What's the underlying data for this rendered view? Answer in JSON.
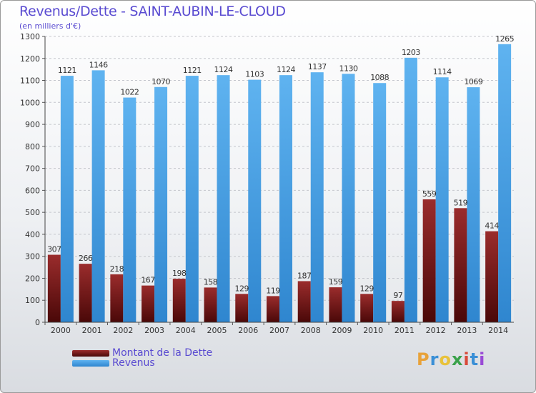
{
  "chart_data": {
    "type": "bar",
    "title": "Revenus/Dette - SAINT-AUBIN-LE-CLOUD",
    "subtitle": "(en milliers d'€)",
    "categories": [
      "2000",
      "2001",
      "2002",
      "2003",
      "2004",
      "2005",
      "2006",
      "2007",
      "2008",
      "2009",
      "2010",
      "2011",
      "2012",
      "2013",
      "2014"
    ],
    "series": [
      {
        "name": "Montant de la Dette",
        "color": "#7b1a1a",
        "values": [
          307,
          266,
          218,
          167,
          198,
          158,
          129,
          119,
          187,
          159,
          129,
          97,
          559,
          519,
          414
        ]
      },
      {
        "name": "Revenus",
        "color": "#4aa3e6",
        "values": [
          1121,
          1146,
          1022,
          1070,
          1121,
          1124,
          1103,
          1124,
          1137,
          1130,
          1088,
          1203,
          1114,
          1069,
          1265
        ]
      }
    ],
    "ylim": [
      0,
      1300
    ],
    "yticks": [
      0,
      100,
      200,
      300,
      400,
      500,
      600,
      700,
      800,
      900,
      1000,
      1100,
      1200,
      1300
    ],
    "grid": true,
    "legend_position": "bottom-left"
  },
  "logo": {
    "letters": [
      "P",
      "r",
      "o",
      "x",
      "i",
      "t",
      "i"
    ],
    "colors": [
      "#e8a23a",
      "#3a8fd6",
      "#e8c23a",
      "#3aa14a",
      "#d84a3a",
      "#3a8fd6",
      "#9a4ad6"
    ]
  }
}
